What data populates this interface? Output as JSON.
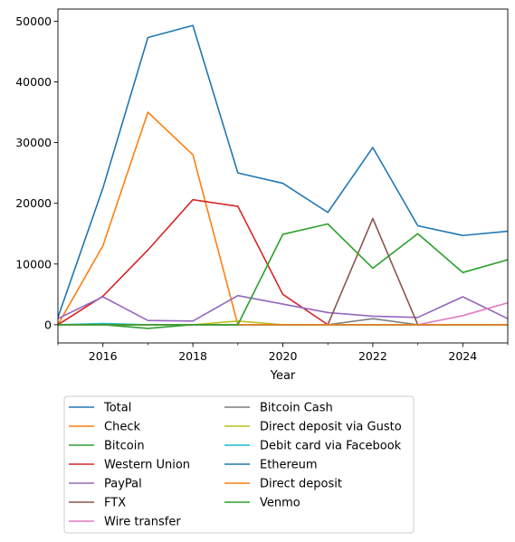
{
  "chart_data": {
    "type": "line",
    "title": "",
    "xlabel": "Year",
    "ylabel": "",
    "xlim": [
      2015,
      2025
    ],
    "ylim": [
      -3000,
      52000
    ],
    "x_ticks": [
      2016,
      2018,
      2020,
      2022,
      2024
    ],
    "y_ticks": [
      0,
      10000,
      20000,
      30000,
      40000,
      50000
    ],
    "grid": false,
    "legend_placement": "below plot, two columns",
    "x": [
      2015,
      2016,
      2017,
      2018,
      2019,
      2020,
      2021,
      2022,
      2023,
      2024,
      2025
    ],
    "series": [
      {
        "name": "Total",
        "color": "#1f77b4",
        "values": [
          1200,
          22500,
          47300,
          49300,
          25000,
          23300,
          18500,
          29200,
          16300,
          14700,
          15400
        ]
      },
      {
        "name": "Check",
        "color": "#ff7f0e",
        "values": [
          0,
          13000,
          35000,
          28000,
          0,
          0,
          0,
          0,
          0,
          0,
          0
        ]
      },
      {
        "name": "Bitcoin",
        "color": "#2ca02c",
        "values": [
          0,
          0,
          -600,
          0,
          0,
          0,
          0,
          0,
          0,
          0,
          0
        ]
      },
      {
        "name": "Western Union",
        "color": "#d62728",
        "values": [
          0,
          4700,
          12300,
          20600,
          19500,
          5000,
          0,
          0,
          0,
          0,
          0
        ]
      },
      {
        "name": "PayPal",
        "color": "#9467bd",
        "values": [
          1000,
          4600,
          700,
          600,
          4800,
          3400,
          2000,
          1400,
          1200,
          4600,
          1000
        ]
      },
      {
        "name": "FTX",
        "color": "#8c564b",
        "values": [
          0,
          0,
          0,
          0,
          0,
          0,
          0,
          17500,
          0,
          0,
          0
        ]
      },
      {
        "name": "Wire transfer",
        "color": "#e377c2",
        "values": [
          0,
          0,
          0,
          0,
          0,
          0,
          0,
          0,
          0,
          1500,
          3600
        ]
      },
      {
        "name": "Bitcoin Cash",
        "color": "#7f7f7f",
        "values": [
          0,
          0,
          0,
          0,
          0,
          0,
          0,
          1000,
          0,
          0,
          0
        ]
      },
      {
        "name": "Direct deposit via Gusto",
        "color": "#bcbd22",
        "values": [
          0,
          0,
          0,
          0,
          600,
          0,
          0,
          0,
          0,
          0,
          0
        ]
      },
      {
        "name": "Debit card via Facebook",
        "color": "#17becf",
        "values": [
          0,
          200,
          0,
          0,
          0,
          0,
          0,
          0,
          0,
          0,
          0
        ]
      },
      {
        "name": "Ethereum",
        "color": "#1f77b4",
        "values": [
          0,
          0,
          0,
          0,
          0,
          0,
          0,
          0,
          0,
          0,
          0
        ]
      },
      {
        "name": "Direct deposit",
        "color": "#ff7f0e",
        "values": [
          0,
          0,
          0,
          0,
          0,
          0,
          0,
          0,
          0,
          0,
          0
        ]
      },
      {
        "name": "Venmo",
        "color": "#2ca02c",
        "values": [
          0,
          0,
          0,
          0,
          0,
          14900,
          16600,
          9300,
          15000,
          8600,
          10700
        ]
      }
    ]
  }
}
